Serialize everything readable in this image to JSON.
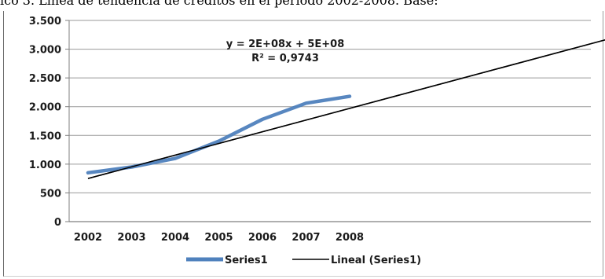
{
  "caption": "ico 3. Línea de tendencia de créditos en el período 2002-2008. Base:",
  "chart_data": {
    "type": "line",
    "categories": [
      "2002",
      "2003",
      "2004",
      "2005",
      "2006",
      "2007",
      "2008"
    ],
    "ylim": [
      0,
      3500
    ],
    "yticks": [
      0,
      500,
      1000,
      1500,
      2000,
      2500,
      3000,
      3500
    ],
    "ytick_labels": [
      "0",
      "500",
      "1.000",
      "1.500",
      "2.000",
      "2.500",
      "3.000",
      "3.500"
    ],
    "grid": true,
    "series": [
      {
        "name": "Series1",
        "color": "#4f81bd",
        "values": [
          850,
          950,
          1100,
          1400,
          1780,
          2060,
          2180
        ]
      }
    ],
    "trendline": {
      "name": "Lineal (Series1)",
      "color": "#000000",
      "start": [
        2002,
        750
      ],
      "end": [
        2014,
        3190
      ]
    },
    "equation": "y = 2E+08x + 5E+08",
    "r_squared": "R² = 0,9743",
    "legend": "bottom"
  }
}
